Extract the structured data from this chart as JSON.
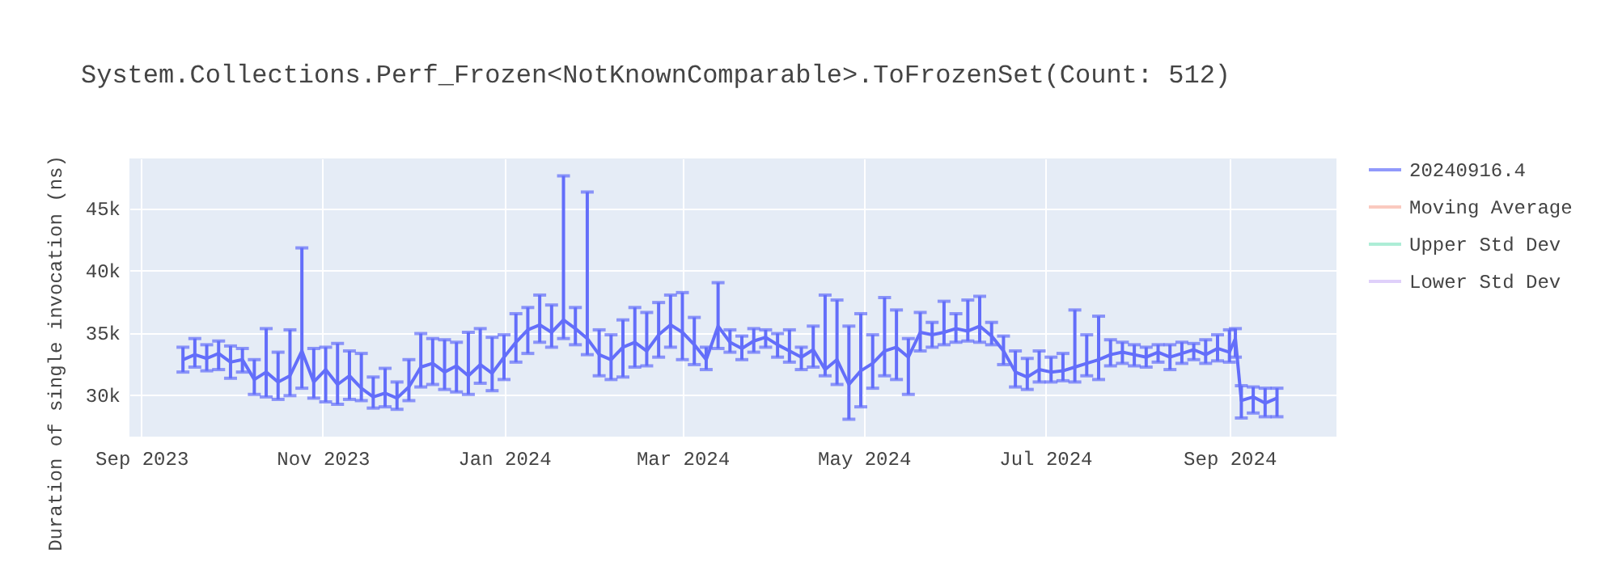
{
  "chart_data": {
    "type": "line",
    "title": "System.Collections.Perf_Frozen<NotKnownComparable>.ToFrozenSet(Count: 512)",
    "ylabel": "Duration of single invocation (ns)",
    "xlim": [
      "2023-08-28",
      "2024-10-07"
    ],
    "xticks": [
      {
        "value": "2023-09-01",
        "label": "Sep 2023"
      },
      {
        "value": "2023-11-01",
        "label": "Nov 2023"
      },
      {
        "value": "2024-01-01",
        "label": "Jan 2024"
      },
      {
        "value": "2024-03-01",
        "label": "Mar 2024"
      },
      {
        "value": "2024-05-01",
        "label": "May 2024"
      },
      {
        "value": "2024-07-01",
        "label": "Jul 2024"
      },
      {
        "value": "2024-09-01",
        "label": "Sep 2024"
      }
    ],
    "ylim": [
      26600,
      49000
    ],
    "yticks": [
      {
        "value": 30000,
        "label": "30k"
      },
      {
        "value": 35000,
        "label": "35k"
      },
      {
        "value": 40000,
        "label": "40k"
      },
      {
        "value": 45000,
        "label": "45k"
      }
    ],
    "grid": true,
    "legend": "top right",
    "marker": "none",
    "line_style": "solid",
    "x": [
      "2023-09-15",
      "2023-09-19",
      "2023-09-23",
      "2023-09-27",
      "2023-10-01",
      "2023-10-05",
      "2023-10-09",
      "2023-10-13",
      "2023-10-17",
      "2023-10-21",
      "2023-10-25",
      "2023-10-29",
      "2023-11-02",
      "2023-11-06",
      "2023-11-10",
      "2023-11-14",
      "2023-11-18",
      "2023-11-22",
      "2023-11-26",
      "2023-11-30",
      "2023-12-04",
      "2023-12-08",
      "2023-12-12",
      "2023-12-16",
      "2023-12-20",
      "2023-12-24",
      "2023-12-28",
      "2024-01-01",
      "2024-01-05",
      "2024-01-09",
      "2024-01-13",
      "2024-01-17",
      "2024-01-21",
      "2024-01-25",
      "2024-01-29",
      "2024-02-02",
      "2024-02-06",
      "2024-02-10",
      "2024-02-14",
      "2024-02-18",
      "2024-02-22",
      "2024-02-26",
      "2024-03-01",
      "2024-03-05",
      "2024-03-09",
      "2024-03-13",
      "2024-03-17",
      "2024-03-21",
      "2024-03-25",
      "2024-03-29",
      "2024-04-02",
      "2024-04-06",
      "2024-04-10",
      "2024-04-14",
      "2024-04-18",
      "2024-04-22",
      "2024-04-26",
      "2024-04-30",
      "2024-05-04",
      "2024-05-08",
      "2024-05-12",
      "2024-05-16",
      "2024-05-20",
      "2024-05-24",
      "2024-05-28",
      "2024-06-01",
      "2024-06-05",
      "2024-06-09",
      "2024-06-13",
      "2024-06-17",
      "2024-06-21",
      "2024-06-25",
      "2024-06-29",
      "2024-07-03",
      "2024-07-07",
      "2024-07-11",
      "2024-07-15",
      "2024-07-19",
      "2024-07-23",
      "2024-07-27",
      "2024-07-31",
      "2024-08-04",
      "2024-08-08",
      "2024-08-12",
      "2024-08-16",
      "2024-08-20",
      "2024-08-24",
      "2024-08-28",
      "2024-09-01",
      "2024-09-03",
      "2024-09-05",
      "2024-09-09",
      "2024-09-13",
      "2024-09-17"
    ],
    "series": [
      {
        "name": "20240916.4",
        "color": "#636efa",
        "values": [
          32800,
          33200,
          32900,
          33300,
          32600,
          32800,
          31200,
          31800,
          31000,
          31500,
          33500,
          31000,
          32000,
          30800,
          31500,
          30500,
          29800,
          30100,
          29700,
          30600,
          32200,
          32500,
          31800,
          32300,
          31500,
          32400,
          31700,
          33000,
          34200,
          35200,
          35600,
          35000,
          36000,
          35300,
          34500,
          33200,
          32800,
          33800,
          34200,
          33500,
          34800,
          35600,
          35000,
          34000,
          32800,
          35500,
          34200,
          33700,
          34300,
          34600,
          34000,
          33500,
          33000,
          33600,
          32000,
          32800,
          30800,
          31900,
          32500,
          33500,
          33800,
          33000,
          35000,
          34800,
          35000,
          35300,
          35100,
          35500,
          34700,
          33500,
          31800,
          31400,
          32000,
          31800,
          31900,
          32200,
          32500,
          32800,
          33200,
          33400,
          33200,
          33000,
          33400,
          33000,
          33300,
          33600,
          33200,
          33700,
          33400,
          34500,
          29500,
          29800,
          29300,
          29700
        ],
        "errors": [
          [
            31800,
            33800
          ],
          [
            32200,
            34500
          ],
          [
            31900,
            34000
          ],
          [
            32000,
            34300
          ],
          [
            31300,
            33900
          ],
          [
            31800,
            33700
          ],
          [
            30000,
            32800
          ],
          [
            29800,
            35300
          ],
          [
            29600,
            33400
          ],
          [
            29900,
            35200
          ],
          [
            30500,
            41800
          ],
          [
            29700,
            33700
          ],
          [
            29400,
            33800
          ],
          [
            29200,
            34100
          ],
          [
            29600,
            33500
          ],
          [
            29500,
            33300
          ],
          [
            28900,
            31400
          ],
          [
            29000,
            32100
          ],
          [
            28800,
            31000
          ],
          [
            29500,
            32800
          ],
          [
            30600,
            34900
          ],
          [
            30800,
            34500
          ],
          [
            30400,
            34400
          ],
          [
            30200,
            34200
          ],
          [
            30000,
            35000
          ],
          [
            30900,
            35300
          ],
          [
            30300,
            34600
          ],
          [
            31200,
            34800
          ],
          [
            32600,
            36500
          ],
          [
            33300,
            37000
          ],
          [
            34200,
            38000
          ],
          [
            33800,
            37200
          ],
          [
            34500,
            47600
          ],
          [
            34000,
            37000
          ],
          [
            33200,
            46300
          ],
          [
            31500,
            35200
          ],
          [
            31200,
            34800
          ],
          [
            31400,
            36000
          ],
          [
            32200,
            37000
          ],
          [
            32300,
            36600
          ],
          [
            33000,
            37400
          ],
          [
            33800,
            38000
          ],
          [
            32800,
            38200
          ],
          [
            32400,
            36200
          ],
          [
            32000,
            33800
          ],
          [
            33700,
            39000
          ],
          [
            33400,
            35200
          ],
          [
            32800,
            34700
          ],
          [
            33400,
            35300
          ],
          [
            33800,
            35200
          ],
          [
            33000,
            34900
          ],
          [
            32600,
            35200
          ],
          [
            32000,
            33800
          ],
          [
            32200,
            35500
          ],
          [
            31500,
            38000
          ],
          [
            30800,
            37600
          ],
          [
            28000,
            35500
          ],
          [
            29000,
            36500
          ],
          [
            30500,
            34800
          ],
          [
            31500,
            37800
          ],
          [
            31200,
            36800
          ],
          [
            30000,
            34500
          ],
          [
            33500,
            36600
          ],
          [
            33800,
            35800
          ],
          [
            34000,
            37500
          ],
          [
            34200,
            36500
          ],
          [
            34300,
            37600
          ],
          [
            34200,
            37900
          ],
          [
            34000,
            35800
          ],
          [
            32400,
            34700
          ],
          [
            30600,
            33500
          ],
          [
            30400,
            32900
          ],
          [
            31000,
            33500
          ],
          [
            31000,
            33000
          ],
          [
            31100,
            33300
          ],
          [
            31000,
            36800
          ],
          [
            31500,
            34800
          ],
          [
            31200,
            36300
          ],
          [
            32300,
            34400
          ],
          [
            32500,
            34200
          ],
          [
            32300,
            34000
          ],
          [
            32200,
            33800
          ],
          [
            32600,
            34000
          ],
          [
            32000,
            34000
          ],
          [
            32500,
            34200
          ],
          [
            32800,
            34100
          ],
          [
            32500,
            34400
          ],
          [
            32700,
            34800
          ],
          [
            32600,
            35200
          ],
          [
            33000,
            35300
          ],
          [
            28100,
            30700
          ],
          [
            28500,
            30600
          ],
          [
            28200,
            30500
          ],
          [
            28200,
            30500
          ]
        ]
      },
      {
        "name": "Moving Average",
        "color": "#f8b4a4",
        "values": [
          null,
          null,
          null,
          null,
          null,
          null,
          null,
          null,
          null,
          null,
          null,
          null,
          null,
          null,
          null,
          null,
          null,
          null,
          null,
          null,
          null,
          null,
          null,
          null,
          null,
          null,
          null,
          null,
          null,
          null,
          null,
          null,
          null,
          null,
          null,
          null,
          null,
          null,
          null,
          null,
          null,
          null,
          null,
          null,
          null,
          null,
          null,
          null,
          null,
          null,
          null,
          null,
          null,
          null,
          null,
          null,
          null,
          null,
          null,
          null,
          null,
          null,
          null,
          null,
          null,
          null,
          null,
          null,
          null,
          null,
          null,
          null,
          null,
          null,
          null,
          null,
          null,
          null,
          null,
          null,
          null,
          null,
          null,
          null,
          null,
          null,
          null,
          null,
          null,
          null,
          null,
          null,
          null,
          null
        ]
      },
      {
        "name": "Upper Std Dev",
        "color": "#8be6c6",
        "values": [
          null,
          null,
          null,
          null,
          null,
          null,
          null,
          null,
          null,
          null,
          null,
          null,
          null,
          null,
          null,
          null,
          null,
          null,
          null,
          null,
          null,
          null,
          null,
          null,
          null,
          null,
          null,
          null,
          null,
          null,
          null,
          null,
          null,
          null,
          null,
          null,
          null,
          null,
          null,
          null,
          null,
          null,
          null,
          null,
          null,
          null,
          null,
          null,
          null,
          null,
          null,
          null,
          null,
          null,
          null,
          null,
          null,
          null,
          null,
          null,
          null,
          null,
          null,
          null,
          null,
          null,
          null,
          null,
          null,
          null,
          null,
          null,
          null,
          null,
          null,
          null,
          null,
          null,
          null,
          null,
          null,
          null,
          null,
          null,
          null,
          null,
          null,
          null,
          null,
          null,
          null,
          null,
          null,
          null
        ]
      },
      {
        "name": "Lower Std Dev",
        "color": "#d2bdf9",
        "values": [
          null,
          null,
          null,
          null,
          null,
          null,
          null,
          null,
          null,
          null,
          null,
          null,
          null,
          null,
          null,
          null,
          null,
          null,
          null,
          null,
          null,
          null,
          null,
          null,
          null,
          null,
          null,
          null,
          null,
          null,
          null,
          null,
          null,
          null,
          null,
          null,
          null,
          null,
          null,
          null,
          null,
          null,
          null,
          null,
          null,
          null,
          null,
          null,
          null,
          null,
          null,
          null,
          null,
          null,
          null,
          null,
          null,
          null,
          null,
          null,
          null,
          null,
          null,
          null,
          null,
          null,
          null,
          null,
          null,
          null,
          null,
          null,
          null,
          null,
          null,
          null,
          null,
          null,
          null,
          null,
          null,
          null,
          null,
          null,
          null,
          null,
          null,
          null,
          null,
          null,
          null,
          null,
          null,
          null
        ]
      }
    ]
  }
}
